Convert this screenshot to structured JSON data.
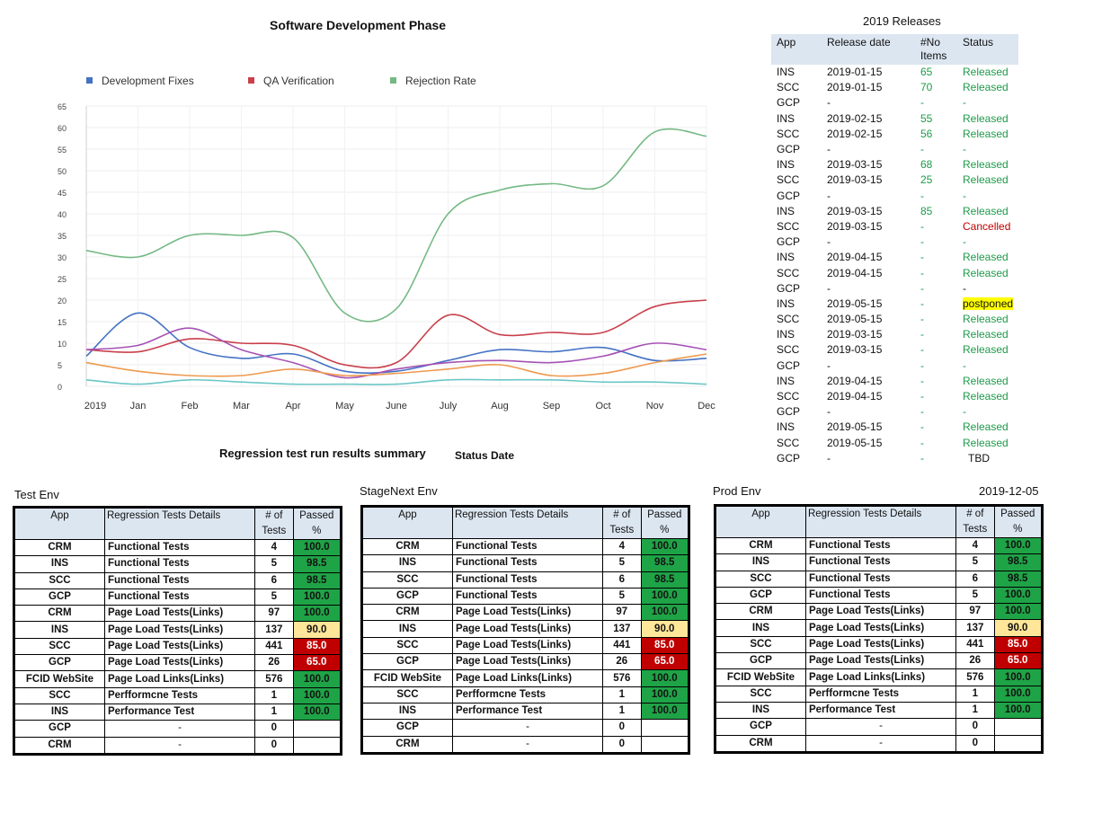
{
  "chart_data": {
    "type": "line",
    "title": "Software Development Phase",
    "categories": [
      "2019",
      "Jan",
      "Feb",
      "Mar",
      "Apr",
      "May",
      "June",
      "July",
      "Aug",
      "Sep",
      "Oct",
      "Nov",
      "Dec"
    ],
    "ylim": [
      0,
      65
    ],
    "yticks": [
      0,
      5,
      10,
      15,
      20,
      25,
      30,
      35,
      40,
      45,
      50,
      55,
      60,
      65
    ],
    "ytick_labels": [
      "0",
      "5",
      "10",
      "15",
      "20",
      "25",
      "30",
      "35",
      "40",
      "45",
      "50",
      "55",
      "60",
      "65"
    ],
    "legend_placement": "top",
    "grid": true,
    "series": [
      {
        "name": "Development Fixes",
        "color": "#4472c4",
        "values": [
          7,
          17,
          9,
          6.5,
          7.5,
          3.5,
          3.5,
          6,
          8.5,
          8,
          9,
          6,
          6.5
        ]
      },
      {
        "name": "QA Verification",
        "color": "#c9404b",
        "values": [
          8.5,
          8,
          11,
          10,
          9.5,
          5,
          5.5,
          16.5,
          12,
          12.5,
          12.5,
          18.5,
          20
        ]
      },
      {
        "name": "Rejection Rate",
        "color": "#74b984",
        "values": [
          31.5,
          30,
          35,
          35,
          34.5,
          17,
          18,
          40,
          45.5,
          47,
          46.5,
          59,
          58
        ]
      },
      {
        "name": "",
        "color": "#a552b5",
        "values": [
          8.5,
          9.5,
          13.5,
          8.5,
          5.5,
          2,
          4,
          5.5,
          6,
          5.5,
          7,
          10,
          8.5
        ]
      },
      {
        "name": "",
        "color": "#ee9a4f",
        "values": [
          5.5,
          3.5,
          2.5,
          2.5,
          4,
          2.5,
          3,
          4,
          5,
          2.5,
          3,
          5.5,
          7.5
        ]
      },
      {
        "name": "",
        "color": "#6cc7c7",
        "values": [
          1.5,
          0.5,
          1.5,
          1,
          0.5,
          0.5,
          0.5,
          1.5,
          1.5,
          1.5,
          1,
          1,
          0.5
        ]
      }
    ]
  },
  "releases": {
    "title": "2019 Releases",
    "headers": {
      "app": "App",
      "date": "Release date",
      "items_1": "#No",
      "items_2": "Items",
      "status": "Status"
    },
    "rows": [
      {
        "app": "INS",
        "date": "2019-01-15",
        "items": "65",
        "status": "Released",
        "color": "green"
      },
      {
        "app": "SCC",
        "date": "2019-01-15",
        "items": "70",
        "status": "Released",
        "color": "green"
      },
      {
        "app": "GCP",
        "date": "-",
        "items": "-",
        "status": "-",
        "color": "green"
      },
      {
        "app": "INS",
        "date": "2019-02-15",
        "items": "55",
        "status": "Released",
        "color": "green"
      },
      {
        "app": "SCC",
        "date": "2019-02-15",
        "items": "56",
        "status": "Released",
        "color": "green"
      },
      {
        "app": "GCP",
        "date": "-",
        "items": "-",
        "status": "-",
        "color": "green"
      },
      {
        "app": "INS",
        "date": "2019-03-15",
        "items": "68",
        "status": "Released",
        "color": "green"
      },
      {
        "app": "SCC",
        "date": "2019-03-15",
        "items": "25",
        "status": "Released",
        "color": "green"
      },
      {
        "app": "GCP",
        "date": "-",
        "items": "-",
        "status": "-",
        "color": "green"
      },
      {
        "app": "INS",
        "date": "2019-03-15",
        "items": "85",
        "status": "Released",
        "color": "green"
      },
      {
        "app": "SCC",
        "date": "2019-03-15",
        "items": "-",
        "status": "Cancelled",
        "color": "red"
      },
      {
        "app": "GCP",
        "date": "-",
        "items": "-",
        "status": "-",
        "color": "green"
      },
      {
        "app": "INS",
        "date": "2019-04-15",
        "items": "-",
        "status": "Released",
        "color": "green"
      },
      {
        "app": "SCC",
        "date": "2019-04-15",
        "items": "-",
        "status": "Released",
        "color": "green"
      },
      {
        "app": "GCP",
        "date": "-",
        "items": "-",
        "status": "-",
        "color": "dark"
      },
      {
        "app": "INS",
        "date": "2019-05-15",
        "items": "-",
        "status": "postponed",
        "color": "yellow"
      },
      {
        "app": "SCC",
        "date": "2019-05-15",
        "items": "-",
        "status": "Released",
        "color": "green"
      },
      {
        "app": "INS",
        "date": "2019-03-15",
        "items": "-",
        "status": "Released",
        "color": "green"
      },
      {
        "app": "SCC",
        "date": "2019-03-15",
        "items": "-",
        "status": "Released",
        "color": "green"
      },
      {
        "app": "GCP",
        "date": "-",
        "items": "-",
        "status": "-",
        "color": "green"
      },
      {
        "app": "INS",
        "date": "2019-04-15",
        "items": "-",
        "status": "Released",
        "color": "green"
      },
      {
        "app": "SCC",
        "date": "2019-04-15",
        "items": "-",
        "status": "Released",
        "color": "green"
      },
      {
        "app": "GCP",
        "date": "-",
        "items": "-",
        "status": "-",
        "color": "green"
      },
      {
        "app": "INS",
        "date": "2019-05-15",
        "items": "-",
        "status": "Released",
        "color": "green"
      },
      {
        "app": "SCC",
        "date": "2019-05-15",
        "items": "-",
        "status": "Released",
        "color": "green"
      },
      {
        "app": "GCP",
        "date": "-",
        "items": "-",
        "status": "TBD",
        "color": "dark"
      }
    ]
  },
  "summary": {
    "title": "Regression  test run results summary",
    "status_label": "Status Date",
    "status_date": "2019-12-05"
  },
  "env_headers": {
    "app": "App",
    "details": "Regression Tests Details",
    "tests_1": "# of",
    "tests_2": "Tests",
    "passed_1": "Passed",
    "passed_2": "%"
  },
  "envs": [
    {
      "name": "Test Env",
      "rows": [
        {
          "app": "CRM",
          "details": "Functional Tests",
          "tests": "4",
          "passed": "100.0",
          "color": "green"
        },
        {
          "app": "INS",
          "details": "Functional Tests",
          "tests": "5",
          "passed": "98.5",
          "color": "green"
        },
        {
          "app": "SCC",
          "details": "Functional Tests",
          "tests": "6",
          "passed": "98.5",
          "color": "green"
        },
        {
          "app": "GCP",
          "details": "Functional Tests",
          "tests": "5",
          "passed": "100.0",
          "color": "green"
        },
        {
          "app": "CRM",
          "details": "Page Load Tests(Links)",
          "tests": "97",
          "passed": "100.0",
          "color": "green"
        },
        {
          "app": "INS",
          "details": "Page Load Tests(Links)",
          "tests": "137",
          "passed": "90.0",
          "color": "yellow"
        },
        {
          "app": "SCC",
          "details": "Page Load Tests(Links)",
          "tests": "441",
          "passed": "85.0",
          "color": "red"
        },
        {
          "app": "GCP",
          "details": "Page Load Tests(Links)",
          "tests": "26",
          "passed": "65.0",
          "color": "red"
        },
        {
          "app": "FCID WebSite",
          "details": "Page Load Links(Links)",
          "tests": "576",
          "passed": "100.0",
          "color": "green"
        },
        {
          "app": "SCC",
          "details": "Perfformcne Tests",
          "tests": "1",
          "passed": "100.0",
          "color": "green"
        },
        {
          "app": "INS",
          "details": "Performance Test",
          "tests": "1",
          "passed": "100.0",
          "color": "green"
        },
        {
          "app": "GCP",
          "details": "-",
          "tests": "0",
          "passed": "",
          "color": "none"
        },
        {
          "app": "CRM",
          "details": "-",
          "tests": "0",
          "passed": "",
          "color": "none"
        }
      ]
    },
    {
      "name": "StageNext Env",
      "rows": [
        {
          "app": "CRM",
          "details": "Functional Tests",
          "tests": "4",
          "passed": "100.0",
          "color": "green"
        },
        {
          "app": "INS",
          "details": "Functional Tests",
          "tests": "5",
          "passed": "98.5",
          "color": "green"
        },
        {
          "app": "SCC",
          "details": "Functional Tests",
          "tests": "6",
          "passed": "98.5",
          "color": "green"
        },
        {
          "app": "GCP",
          "details": "Functional Tests",
          "tests": "5",
          "passed": "100.0",
          "color": "green"
        },
        {
          "app": "CRM",
          "details": "Page Load Tests(Links)",
          "tests": "97",
          "passed": "100.0",
          "color": "green"
        },
        {
          "app": "INS",
          "details": "Page Load Tests(Links)",
          "tests": "137",
          "passed": "90.0",
          "color": "yellow"
        },
        {
          "app": "SCC",
          "details": "Page Load Tests(Links)",
          "tests": "441",
          "passed": "85.0",
          "color": "red"
        },
        {
          "app": "GCP",
          "details": "Page Load Tests(Links)",
          "tests": "26",
          "passed": "65.0",
          "color": "red"
        },
        {
          "app": "FCID WebSite",
          "details": "Page Load Links(Links)",
          "tests": "576",
          "passed": "100.0",
          "color": "green"
        },
        {
          "app": "SCC",
          "details": "Perfformcne Tests",
          "tests": "1",
          "passed": "100.0",
          "color": "green"
        },
        {
          "app": "INS",
          "details": "Performance Test",
          "tests": "1",
          "passed": "100.0",
          "color": "green"
        },
        {
          "app": "GCP",
          "details": "-",
          "tests": "0",
          "passed": "",
          "color": "none"
        },
        {
          "app": "CRM",
          "details": "-",
          "tests": "0",
          "passed": "",
          "color": "none"
        }
      ]
    },
    {
      "name": "Prod Env",
      "rows": [
        {
          "app": "CRM",
          "details": "Functional Tests",
          "tests": "4",
          "passed": "100.0",
          "color": "green"
        },
        {
          "app": "INS",
          "details": "Functional Tests",
          "tests": "5",
          "passed": "98.5",
          "color": "green"
        },
        {
          "app": "SCC",
          "details": "Functional Tests",
          "tests": "6",
          "passed": "98.5",
          "color": "green"
        },
        {
          "app": "GCP",
          "details": "Functional Tests",
          "tests": "5",
          "passed": "100.0",
          "color": "green"
        },
        {
          "app": "CRM",
          "details": "Page Load Tests(Links)",
          "tests": "97",
          "passed": "100.0",
          "color": "green"
        },
        {
          "app": "INS",
          "details": "Page Load Tests(Links)",
          "tests": "137",
          "passed": "90.0",
          "color": "yellow"
        },
        {
          "app": "SCC",
          "details": "Page Load Tests(Links)",
          "tests": "441",
          "passed": "85.0",
          "color": "red"
        },
        {
          "app": "GCP",
          "details": "Page Load Tests(Links)",
          "tests": "26",
          "passed": "65.0",
          "color": "red"
        },
        {
          "app": "FCID WebSite",
          "details": "Page Load Links(Links)",
          "tests": "576",
          "passed": "100.0",
          "color": "green"
        },
        {
          "app": "SCC",
          "details": "Perfformcne Tests",
          "tests": "1",
          "passed": "100.0",
          "color": "green"
        },
        {
          "app": "INS",
          "details": "Performance Test",
          "tests": "1",
          "passed": "100.0",
          "color": "green"
        },
        {
          "app": "GCP",
          "details": "-",
          "tests": "0",
          "passed": "",
          "color": "none"
        },
        {
          "app": "CRM",
          "details": "-",
          "tests": "0",
          "passed": "",
          "color": "none"
        }
      ]
    }
  ]
}
